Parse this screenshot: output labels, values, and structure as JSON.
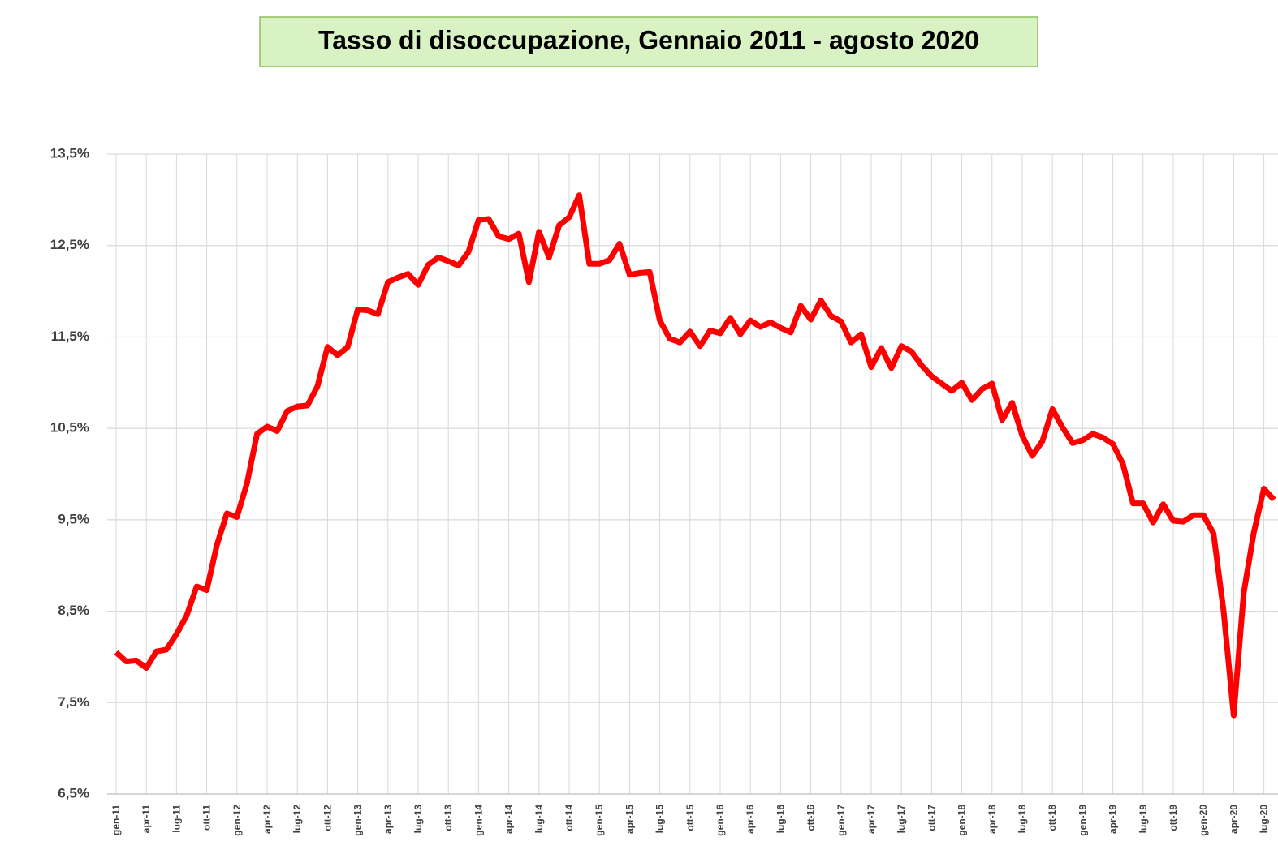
{
  "chart_data": {
    "type": "line",
    "title": "Tasso di disoccupazione, Gennaio 2011 - agosto 2020",
    "categories": [
      "gen-11",
      null,
      null,
      "apr-11",
      null,
      null,
      "lug-11",
      null,
      null,
      "ott-11",
      null,
      null,
      "gen-12",
      null,
      null,
      "apr-12",
      null,
      null,
      "lug-12",
      null,
      null,
      "ott-12",
      null,
      null,
      "gen-13",
      null,
      null,
      "apr-13",
      null,
      null,
      "lug-13",
      null,
      null,
      "ott-13",
      null,
      null,
      "gen-14",
      null,
      null,
      "apr-14",
      null,
      null,
      "lug-14",
      null,
      null,
      "ott-14",
      null,
      null,
      "gen-15",
      null,
      null,
      "apr-15",
      null,
      null,
      "lug-15",
      null,
      null,
      "ott-15",
      null,
      null,
      "gen-16",
      null,
      null,
      "apr-16",
      null,
      null,
      "lug-16",
      null,
      null,
      "ott-16",
      null,
      null,
      "gen-17",
      null,
      null,
      "apr-17",
      null,
      null,
      "lug-17",
      null,
      null,
      "ott-17",
      null,
      null,
      "gen-18",
      null,
      null,
      "apr-18",
      null,
      null,
      "lug-18",
      null,
      null,
      "ott-18",
      null,
      null,
      "gen-19",
      null,
      null,
      "apr-19",
      null,
      null,
      "lug-19",
      null,
      null,
      "ott-19",
      null,
      null,
      "gen-20",
      null,
      null,
      "apr-20",
      null,
      null,
      "lug-20",
      null
    ],
    "series": [
      {
        "color": "#ff0000",
        "values": [
          8.05,
          7.95,
          7.96,
          7.88,
          8.06,
          8.08,
          8.25,
          8.45,
          8.77,
          8.73,
          9.22,
          9.57,
          9.53,
          9.9,
          10.44,
          10.52,
          10.47,
          10.69,
          10.74,
          10.75,
          10.96,
          11.39,
          11.3,
          11.39,
          11.8,
          11.79,
          11.75,
          12.1,
          12.15,
          12.19,
          12.07,
          12.29,
          12.37,
          12.33,
          12.28,
          12.43,
          12.78,
          12.79,
          12.6,
          12.57,
          12.63,
          12.1,
          12.65,
          12.37,
          12.72,
          12.81,
          13.05,
          12.3,
          12.3,
          12.34,
          12.52,
          12.18,
          12.2,
          12.21,
          11.68,
          11.48,
          11.44,
          11.56,
          11.4,
          11.57,
          11.54,
          11.71,
          11.53,
          11.68,
          11.61,
          11.66,
          11.6,
          11.55,
          11.84,
          11.69,
          11.9,
          11.73,
          11.67,
          11.44,
          11.53,
          11.17,
          11.38,
          11.16,
          11.4,
          11.34,
          11.19,
          11.07,
          10.99,
          10.91,
          11.0,
          10.81,
          10.93,
          10.99,
          10.59,
          10.78,
          10.42,
          10.2,
          10.36,
          10.71,
          10.51,
          10.34,
          10.37,
          10.44,
          10.4,
          10.33,
          10.11,
          9.68,
          9.68,
          9.47,
          9.67,
          9.49,
          9.48,
          9.55,
          9.55,
          9.35,
          8.5,
          7.36,
          8.7,
          9.36,
          9.84,
          9.72
        ]
      }
    ],
    "ylim": [
      6.5,
      13.5
    ],
    "yticks": [
      {
        "value": 6.5,
        "label": "6,5%"
      },
      {
        "value": 7.5,
        "label": "7,5%"
      },
      {
        "value": 8.5,
        "label": "8,5%"
      },
      {
        "value": 9.5,
        "label": "9,5%"
      },
      {
        "value": 10.5,
        "label": "10,5%"
      },
      {
        "value": 11.5,
        "label": "11,5%"
      },
      {
        "value": 12.5,
        "label": "12,5%"
      },
      {
        "value": 13.5,
        "label": "13,5%"
      }
    ],
    "grid": true
  }
}
